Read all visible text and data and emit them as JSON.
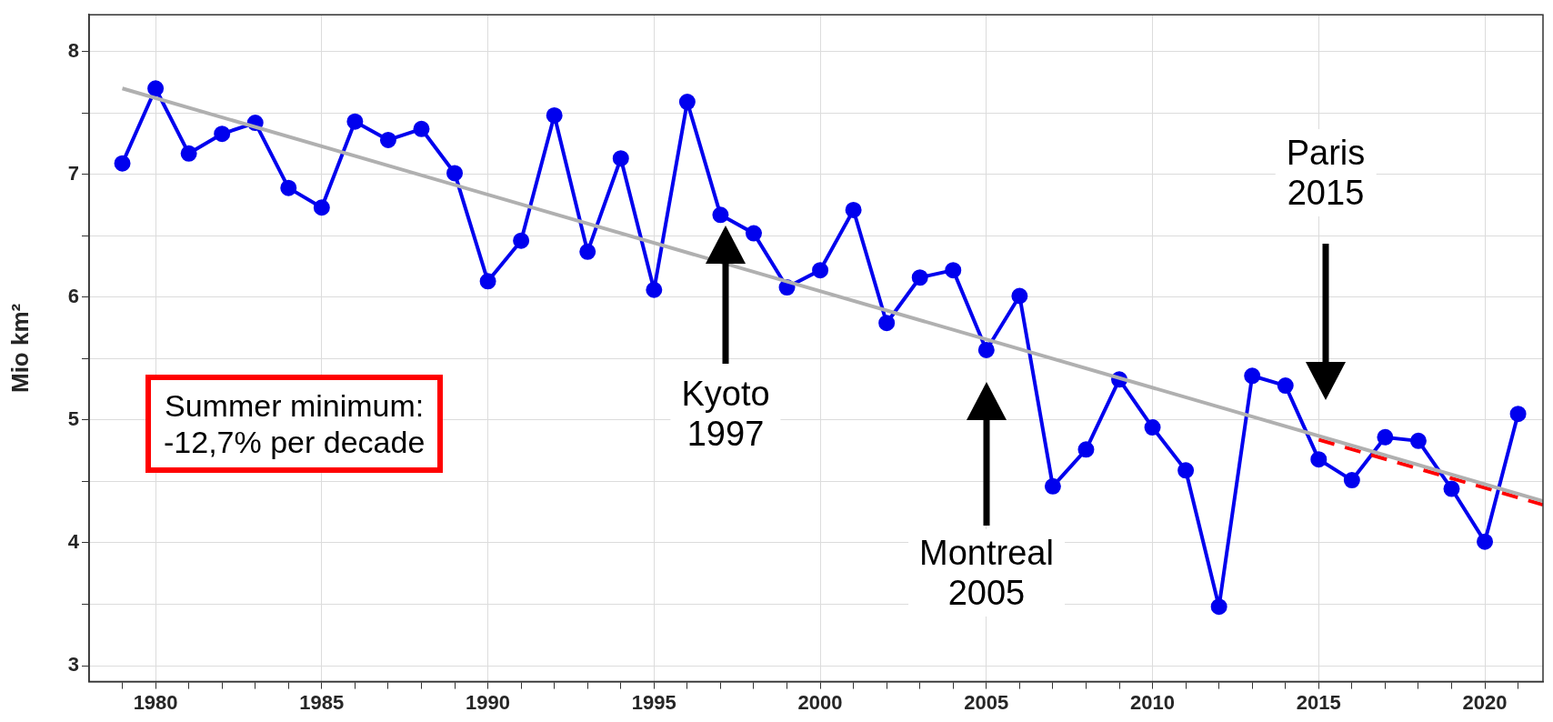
{
  "chart_data": {
    "type": "line",
    "ylabel": "Mio km²",
    "xlim": [
      1978,
      2021.75
    ],
    "ylim": [
      2.87,
      8.3
    ],
    "xticks": [
      {
        "value": 1979,
        "label": null
      },
      1980,
      {
        "value": 1981,
        "label": null
      },
      {
        "value": 1982,
        "label": null
      },
      {
        "value": 1983,
        "label": null
      },
      {
        "value": 1984,
        "label": null
      },
      1985,
      {
        "value": 1986,
        "label": null
      },
      {
        "value": 1987,
        "label": null
      },
      {
        "value": 1988,
        "label": null
      },
      {
        "value": 1989,
        "label": null
      },
      1990,
      {
        "value": 1991,
        "label": null
      },
      {
        "value": 1992,
        "label": null
      },
      {
        "value": 1993,
        "label": null
      },
      {
        "value": 1994,
        "label": null
      },
      1995,
      {
        "value": 1996,
        "label": null
      },
      {
        "value": 1997,
        "label": null
      },
      {
        "value": 1998,
        "label": null
      },
      {
        "value": 1999,
        "label": null
      },
      2000,
      {
        "value": 2001,
        "label": null
      },
      {
        "value": 2002,
        "label": null
      },
      {
        "value": 2003,
        "label": null
      },
      {
        "value": 2004,
        "label": null
      },
      2005,
      {
        "value": 2006,
        "label": null
      },
      {
        "value": 2007,
        "label": null
      },
      {
        "value": 2008,
        "label": null
      },
      {
        "value": 2009,
        "label": null
      },
      2010,
      {
        "value": 2011,
        "label": null
      },
      {
        "value": 2012,
        "label": null
      },
      {
        "value": 2013,
        "label": null
      },
      {
        "value": 2014,
        "label": null
      },
      2015,
      {
        "value": 2016,
        "label": null
      },
      {
        "value": 2017,
        "label": null
      },
      {
        "value": 2018,
        "label": null
      },
      {
        "value": 2019,
        "label": null
      },
      2020,
      {
        "value": 2021,
        "label": null
      }
    ],
    "yticks": [
      3,
      {
        "value": 3.5,
        "label": null
      },
      4,
      {
        "value": 4.5,
        "label": null
      },
      5,
      {
        "value": 5.5,
        "label": null
      },
      6,
      {
        "value": 6.5,
        "label": null
      },
      7,
      {
        "value": 7.5,
        "label": null
      },
      8
    ],
    "grid": true,
    "legend": false,
    "series": [
      {
        "color": "#b0b0b0",
        "marker": "none",
        "line_style": "solid",
        "x": [
          1979,
          2021.75
        ],
        "values": [
          7.7,
          4.34
        ]
      },
      {
        "color": "#ff0000",
        "marker": "none",
        "line_style": "dashed",
        "x": [
          2015,
          2021.75
        ],
        "values": [
          4.84,
          4.31
        ]
      },
      {
        "color": "#0000ee",
        "marker": "circle",
        "line_style": "solid",
        "x": [
          1979,
          1980,
          1981,
          1982,
          1983,
          1984,
          1985,
          1986,
          1987,
          1988,
          1989,
          1990,
          1991,
          1992,
          1993,
          1994,
          1995,
          1996,
          1997,
          1998,
          1999,
          2000,
          2001,
          2002,
          2003,
          2004,
          2005,
          2006,
          2007,
          2008,
          2009,
          2010,
          2011,
          2012,
          2013,
          2014,
          2015,
          2016,
          2017,
          2018,
          2019,
          2020,
          2021
        ],
        "values": [
          7.09,
          7.7,
          7.17,
          7.33,
          7.42,
          6.89,
          6.73,
          7.43,
          7.28,
          7.37,
          7.01,
          6.13,
          6.46,
          7.48,
          6.37,
          7.13,
          6.06,
          7.59,
          6.67,
          6.52,
          6.08,
          6.22,
          6.71,
          5.79,
          6.16,
          6.22,
          5.57,
          6.01,
          4.46,
          4.76,
          5.33,
          4.94,
          4.59,
          3.48,
          5.36,
          5.28,
          4.68,
          4.51,
          4.86,
          4.83,
          4.44,
          4.01,
          5.05
        ]
      }
    ],
    "annotations": [
      "Summer minimum:\n-12,7% per decade",
      "Kyoto\n1997",
      "Montreal\n2005",
      "Paris\n2015"
    ]
  }
}
